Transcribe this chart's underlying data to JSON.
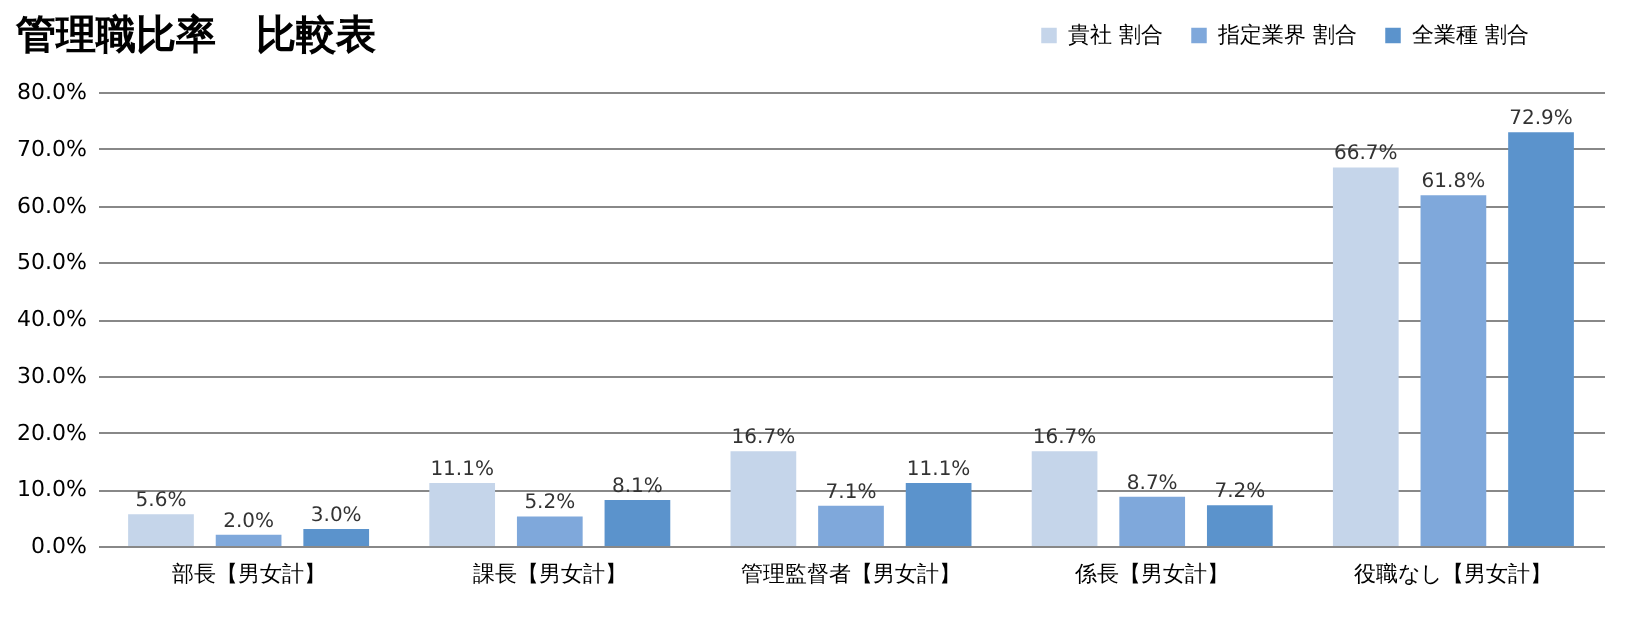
{
  "chart_data": {
    "type": "bar",
    "title": "管理職比率　比較表",
    "categories": [
      "部長【男女計】",
      "課長【男女計】",
      "管理監督者【男女計】",
      "係長【男女計】",
      "役職なし【男女計】"
    ],
    "series": [
      {
        "name": "貴社 割合",
        "color": "#c5d5ea",
        "values": [
          5.6,
          11.1,
          16.7,
          16.7,
          66.7
        ],
        "value_labels": [
          "5.6%",
          "11.1%",
          "16.7%",
          "16.7%",
          "66.7%"
        ]
      },
      {
        "name": "指定業界 割合",
        "color": "#7fa8db",
        "values": [
          2.0,
          5.2,
          7.1,
          8.7,
          61.8
        ],
        "value_labels": [
          "2.0%",
          "5.2%",
          "7.1%",
          "8.7%",
          "61.8%"
        ]
      },
      {
        "name": "全業種 割合",
        "color": "#5b93cc",
        "values": [
          3.0,
          8.1,
          11.1,
          7.2,
          72.9
        ],
        "value_labels": [
          "3.0%",
          "8.1%",
          "11.1%",
          "7.2%",
          "72.9%"
        ]
      }
    ],
    "ylim": [
      0,
      80
    ],
    "yticks": [
      {
        "value": 0,
        "label": "0.0%"
      },
      {
        "value": 10,
        "label": "10.0%"
      },
      {
        "value": 20,
        "label": "20.0%"
      },
      {
        "value": 30,
        "label": "30.0%"
      },
      {
        "value": 40,
        "label": "40.0%"
      },
      {
        "value": 50,
        "label": "50.0%"
      },
      {
        "value": 60,
        "label": "60.0%"
      },
      {
        "value": 70,
        "label": "70.0%"
      },
      {
        "value": 80,
        "label": "80.0%"
      }
    ],
    "grid": "y",
    "legend": "top right"
  }
}
